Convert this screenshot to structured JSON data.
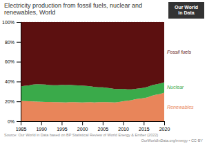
{
  "chart_data": {
    "type": "area",
    "stacked": true,
    "title": "Electricity production from fossil fuels, nuclear and renewables, World",
    "annotations": [
      "Source: Our World in Data based on BP Statistical Review of World Energy & Ember (2022)",
      "OurWorldInData.org/energy • CC-BY",
      "Our World\nin Data"
    ],
    "x": [
      1985,
      1986,
      1987,
      1988,
      1989,
      1990,
      1991,
      1992,
      1993,
      1994,
      1995,
      1996,
      1997,
      1998,
      1999,
      2000,
      2001,
      2002,
      2003,
      2004,
      2005,
      2006,
      2007,
      2008,
      2009,
      2010,
      2011,
      2012,
      2013,
      2014,
      2015,
      2016,
      2017,
      2018,
      2019,
      2020
    ],
    "series": [
      {
        "name": "Renewables",
        "color": "#e8855a",
        "values": [
          20.5,
          20.3,
          20.1,
          20.0,
          19.8,
          19.6,
          19.5,
          19.4,
          19.3,
          19.2,
          19.1,
          19.0,
          19.2,
          19.3,
          19.1,
          19.0,
          19.1,
          19.2,
          19.0,
          19.2,
          19.2,
          19.2,
          19.1,
          18.9,
          19.4,
          20.2,
          20.7,
          21.2,
          22.2,
          22.7,
          23.2,
          24.2,
          25.7,
          26.7,
          27.5,
          28.8
        ]
      },
      {
        "name": "Nuclear",
        "color": "#3aaa4a",
        "values": [
          14.5,
          15.5,
          16.0,
          17.0,
          17.5,
          17.5,
          17.5,
          17.0,
          17.0,
          17.0,
          17.5,
          17.5,
          17.5,
          17.0,
          17.0,
          17.0,
          16.5,
          16.0,
          15.5,
          15.0,
          15.0,
          14.5,
          14.0,
          13.5,
          13.0,
          12.5,
          11.5,
          11.0,
          10.5,
          10.5,
          10.5,
          10.5,
          10.5,
          10.5,
          10.5,
          10.5
        ]
      },
      {
        "name": "Fossil fuels",
        "color": "#5c1010",
        "values": [
          65.0,
          64.2,
          63.9,
          63.0,
          62.7,
          62.9,
          63.0,
          63.6,
          63.7,
          63.8,
          63.4,
          63.5,
          63.3,
          63.7,
          63.9,
          64.0,
          64.4,
          64.8,
          65.5,
          65.8,
          65.8,
          66.3,
          66.9,
          67.6,
          67.6,
          67.3,
          67.8,
          67.8,
          67.3,
          66.8,
          66.3,
          65.3,
          63.8,
          62.8,
          62.0,
          60.7
        ]
      }
    ],
    "xlim": [
      1985,
      2020
    ],
    "xticks": [
      1985,
      1990,
      1995,
      2000,
      2005,
      2010,
      2015,
      2020
    ],
    "ylim": [
      0,
      100
    ],
    "yticks": [
      {
        "value": 0,
        "label": "0%"
      },
      {
        "value": 20,
        "label": "20%"
      },
      {
        "value": 40,
        "label": "40%"
      },
      {
        "value": 60,
        "label": "60%"
      },
      {
        "value": 80,
        "label": "80%"
      },
      {
        "value": 100,
        "label": "100%"
      }
    ],
    "grid": true
  }
}
